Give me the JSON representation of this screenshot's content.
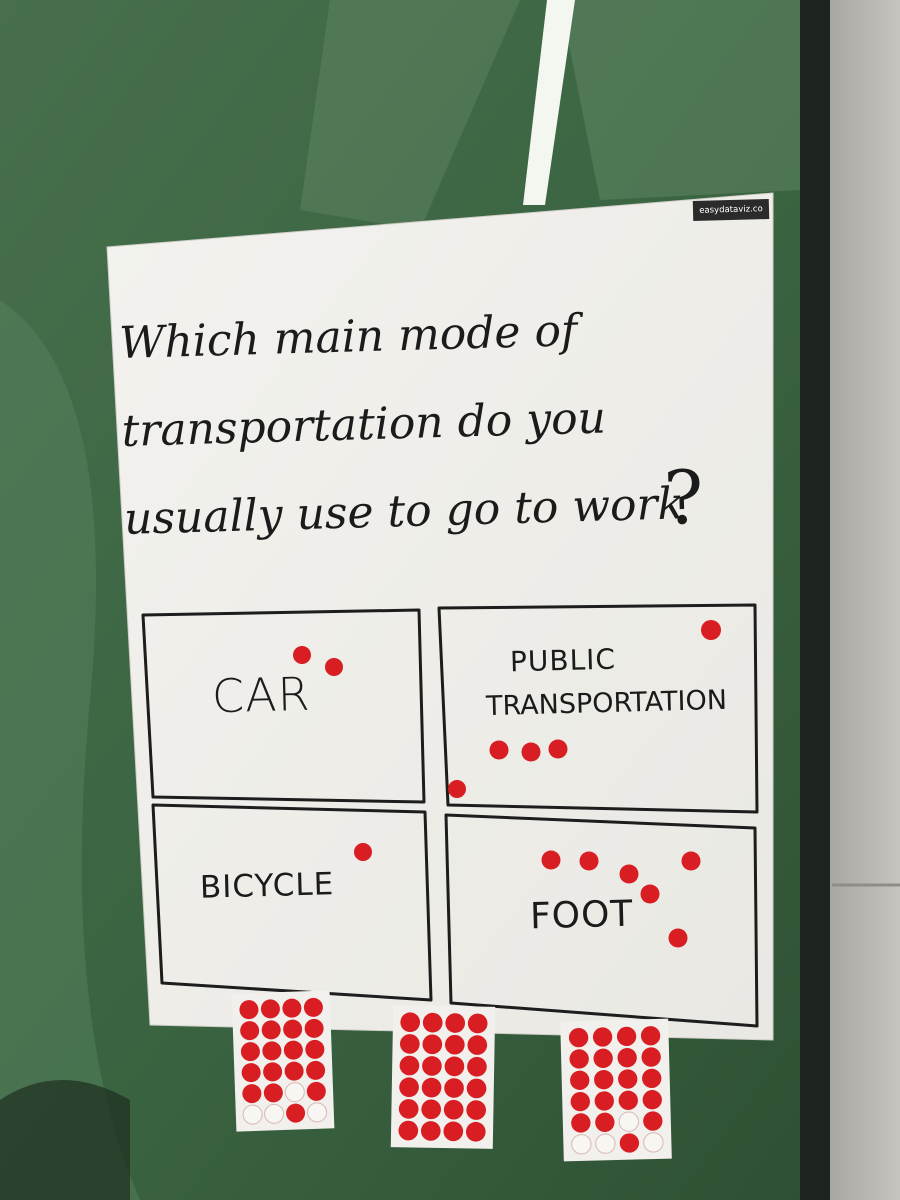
{
  "poster": {
    "logo": "easydataviz.co",
    "title_lines": [
      "Which main mode of",
      "transportation do you",
      "usually use to go to work"
    ],
    "question_mark": "?"
  },
  "options": [
    {
      "label": "CAR",
      "votes": 2
    },
    {
      "label_lines": [
        "PUBLIC",
        "TRANSPORTATION"
      ],
      "votes": 5
    },
    {
      "label": "BICYCLE",
      "votes": 1
    },
    {
      "label": "FOOT",
      "votes": 6
    }
  ],
  "colors": {
    "dot": "#d81e22",
    "poster": "#f4f3ef",
    "glass": "#3f6a45",
    "wall": "#b9b7b1"
  }
}
